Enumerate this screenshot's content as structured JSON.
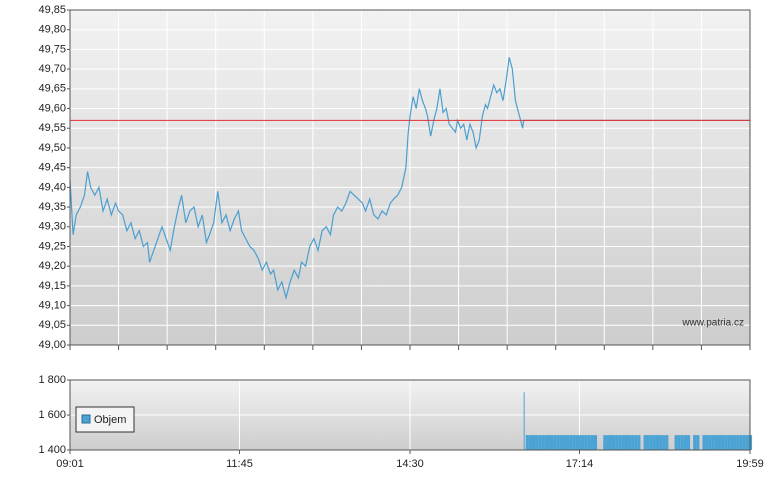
{
  "watermark": "www.patria.cz",
  "chart_data": [
    {
      "type": "line",
      "xlim": [
        541,
        1199
      ],
      "ylim": [
        49.0,
        49.85
      ],
      "grid": true,
      "reference_value": 49.57,
      "reference_color": "#e03030",
      "yticks": [
        {
          "value": 49.0,
          "label": "49,00"
        },
        {
          "value": 49.05,
          "label": "49,05"
        },
        {
          "value": 49.1,
          "label": "49,10"
        },
        {
          "value": 49.15,
          "label": "49,15"
        },
        {
          "value": 49.2,
          "label": "49,20"
        },
        {
          "value": 49.25,
          "label": "49,25"
        },
        {
          "value": 49.3,
          "label": "49,30"
        },
        {
          "value": 49.35,
          "label": "49,35"
        },
        {
          "value": 49.4,
          "label": "49,40"
        },
        {
          "value": 49.45,
          "label": "49,45"
        },
        {
          "value": 49.5,
          "label": "49,50"
        },
        {
          "value": 49.55,
          "label": "49,55"
        },
        {
          "value": 49.6,
          "label": "49,60"
        },
        {
          "value": 49.65,
          "label": "49,65"
        },
        {
          "value": 49.7,
          "label": "49,70"
        },
        {
          "value": 49.75,
          "label": "49,75"
        },
        {
          "value": 49.8,
          "label": "49,80"
        },
        {
          "value": 49.85,
          "label": "49,85"
        }
      ],
      "series": [
        {
          "color": "#4a9fd0",
          "x": [
            541,
            544,
            547,
            551,
            555,
            558,
            561,
            565,
            569,
            573,
            577,
            581,
            585,
            588,
            592,
            596,
            600,
            604,
            608,
            612,
            616,
            618,
            622,
            626,
            630,
            634,
            638,
            642,
            646,
            649,
            653,
            657,
            661,
            665,
            669,
            673,
            676,
            680,
            684,
            688,
            692,
            696,
            700,
            704,
            707,
            711,
            715,
            719,
            723,
            727,
            731,
            735,
            738,
            742,
            746,
            750,
            754,
            758,
            762,
            765,
            769,
            773,
            777,
            781,
            785,
            789,
            793,
            796,
            800,
            804,
            808,
            812,
            816,
            820,
            824,
            827,
            831,
            835,
            839,
            843,
            847,
            851,
            854,
            858,
            862,
            866,
            868,
            870,
            873,
            876,
            879,
            882,
            885,
            887,
            890,
            893,
            896,
            899,
            902,
            905,
            908,
            911,
            914,
            916,
            919,
            922,
            925,
            928,
            931,
            934,
            937,
            940,
            943,
            945,
            948,
            951,
            954,
            957,
            960,
            963,
            966,
            969,
            972,
            975,
            977,
            979,
            980
          ],
          "values": [
            49.42,
            49.28,
            49.33,
            49.35,
            49.38,
            49.44,
            49.4,
            49.38,
            49.4,
            49.34,
            49.37,
            49.33,
            49.36,
            49.34,
            49.33,
            49.29,
            49.31,
            49.27,
            49.29,
            49.25,
            49.26,
            49.21,
            49.24,
            49.27,
            49.3,
            49.27,
            49.24,
            49.3,
            49.35,
            49.38,
            49.31,
            49.34,
            49.35,
            49.3,
            49.33,
            49.26,
            49.28,
            49.31,
            49.39,
            49.31,
            49.33,
            49.29,
            49.32,
            49.34,
            49.29,
            49.27,
            49.25,
            49.24,
            49.22,
            49.19,
            49.21,
            49.18,
            49.19,
            49.14,
            49.16,
            49.12,
            49.16,
            49.19,
            49.17,
            49.21,
            49.2,
            49.25,
            49.27,
            49.24,
            49.29,
            49.3,
            49.28,
            49.33,
            49.35,
            49.34,
            49.36,
            49.39,
            49.38,
            49.37,
            49.36,
            49.34,
            49.37,
            49.33,
            49.32,
            49.34,
            49.33,
            49.36,
            49.37,
            49.38,
            49.4,
            49.45,
            49.53,
            49.58,
            49.63,
            49.6,
            49.65,
            49.62,
            49.6,
            49.58,
            49.53,
            49.57,
            49.6,
            49.65,
            49.59,
            49.6,
            49.56,
            49.55,
            49.54,
            49.57,
            49.55,
            49.56,
            49.52,
            49.56,
            49.54,
            49.5,
            49.52,
            49.58,
            49.61,
            49.6,
            49.63,
            49.66,
            49.64,
            49.65,
            49.62,
            49.67,
            49.73,
            49.7,
            49.62,
            49.59,
            49.57,
            49.55,
            49.57
          ]
        },
        {
          "color": "#7f97b5",
          "x": [
            980,
            1199
          ],
          "values": [
            49.57,
            49.57
          ]
        }
      ]
    },
    {
      "type": "bar",
      "xlim": [
        541,
        1199
      ],
      "ylim": [
        1400,
        1800
      ],
      "grid": true,
      "bar_width": 3,
      "xticks": [
        {
          "value": 541,
          "label": "09:01"
        },
        {
          "value": 705,
          "label": "11:45"
        },
        {
          "value": 870,
          "label": "14:30"
        },
        {
          "value": 1034,
          "label": "17:14"
        },
        {
          "value": 1199,
          "label": "19:59"
        }
      ],
      "yticks": [
        {
          "value": 1400,
          "label": "1 400"
        },
        {
          "value": 1600,
          "label": "1 600"
        },
        {
          "value": 1800,
          "label": "1 800"
        }
      ],
      "series": [
        {
          "name": "Objem",
          "color": "#4aa3d4",
          "x": [
            980,
            982,
            985,
            988,
            991,
            994,
            997,
            1000,
            1003,
            1006,
            1009,
            1012,
            1015,
            1018,
            1021,
            1024,
            1027,
            1030,
            1033,
            1036,
            1039,
            1042,
            1045,
            1048,
            1057,
            1060,
            1063,
            1066,
            1069,
            1072,
            1075,
            1078,
            1081,
            1084,
            1087,
            1090,
            1096,
            1099,
            1102,
            1105,
            1108,
            1111,
            1114,
            1117,
            1126,
            1129,
            1132,
            1135,
            1138,
            1144,
            1147,
            1153,
            1156,
            1159,
            1162,
            1165,
            1168,
            1171,
            1174,
            1177,
            1180,
            1183,
            1186,
            1189,
            1192,
            1195,
            1198
          ],
          "values": [
            1730,
            1485,
            1485,
            1485,
            1485,
            1485,
            1485,
            1485,
            1485,
            1485,
            1485,
            1485,
            1485,
            1485,
            1485,
            1485,
            1485,
            1485,
            1485,
            1485,
            1485,
            1485,
            1485,
            1485,
            1485,
            1485,
            1485,
            1485,
            1485,
            1485,
            1485,
            1485,
            1485,
            1485,
            1485,
            1485,
            1485,
            1485,
            1485,
            1485,
            1485,
            1485,
            1485,
            1485,
            1485,
            1485,
            1485,
            1485,
            1485,
            1485,
            1485,
            1485,
            1485,
            1485,
            1485,
            1485,
            1485,
            1485,
            1485,
            1485,
            1485,
            1485,
            1485,
            1485,
            1485,
            1485,
            1485
          ]
        }
      ]
    }
  ]
}
